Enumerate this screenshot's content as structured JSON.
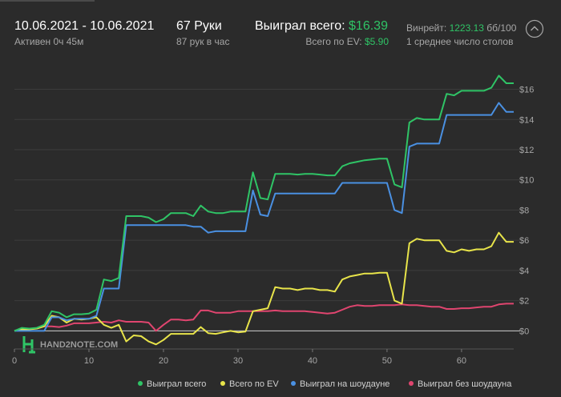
{
  "header": {
    "date_range": "10.06.2021 - 10.06.2021",
    "active_time": "Активен 0ч 45м",
    "hands": "67 Руки",
    "hands_per_hour": "87 рук в час",
    "won_total_label": "Выиграл всего:",
    "won_total_value": "$16.39",
    "ev_total_label": "Всего по EV:",
    "ev_total_value": "$5.90",
    "winrate_label": "Винрейт:",
    "winrate_value": "1223.13",
    "winrate_unit": "бб/100",
    "avg_tables": "1 среднее число столов"
  },
  "watermark": "HAND2NOTE.COM",
  "colors": {
    "won_total": "#2fc466",
    "ev": "#e8e44a",
    "showdown": "#4a90e2",
    "non_showdown": "#e0456f",
    "zero_line": "#cfcfcf",
    "grid": "#3c3c3c"
  },
  "chart_data": {
    "type": "line",
    "xlim": [
      0,
      67
    ],
    "ylim": [
      -1.2,
      17.3
    ],
    "x_ticks": [
      0,
      10,
      20,
      30,
      40,
      50,
      60
    ],
    "y_ticks": [
      0,
      2,
      4,
      6,
      8,
      10,
      12,
      14,
      16
    ],
    "y_tick_labels": [
      "$0",
      "$2",
      "$4",
      "$6",
      "$8",
      "$10",
      "$12",
      "$14",
      "$16"
    ],
    "grid": true,
    "legend_position": "bottom",
    "series": [
      {
        "name": "Выиграл всего",
        "key": "won_total",
        "points": [
          [
            0,
            0
          ],
          [
            1,
            0.2
          ],
          [
            2,
            0.15
          ],
          [
            3,
            0.2
          ],
          [
            4,
            0.4
          ],
          [
            5,
            1.3
          ],
          [
            6,
            1.2
          ],
          [
            7,
            0.9
          ],
          [
            8,
            1.1
          ],
          [
            9,
            1.1
          ],
          [
            10,
            1.15
          ],
          [
            11,
            1.4
          ],
          [
            12,
            3.4
          ],
          [
            13,
            3.3
          ],
          [
            14,
            3.5
          ],
          [
            15,
            7.6
          ],
          [
            16,
            7.6
          ],
          [
            17,
            7.6
          ],
          [
            18,
            7.5
          ],
          [
            19,
            7.2
          ],
          [
            20,
            7.4
          ],
          [
            21,
            7.8
          ],
          [
            22,
            7.8
          ],
          [
            23,
            7.8
          ],
          [
            24,
            7.6
          ],
          [
            25,
            8.3
          ],
          [
            26,
            7.9
          ],
          [
            27,
            7.8
          ],
          [
            28,
            7.8
          ],
          [
            29,
            7.9
          ],
          [
            30,
            7.9
          ],
          [
            31,
            7.9
          ],
          [
            32,
            10.5
          ],
          [
            33,
            8.8
          ],
          [
            34,
            8.7
          ],
          [
            35,
            10.4
          ],
          [
            36,
            10.4
          ],
          [
            37,
            10.4
          ],
          [
            38,
            10.35
          ],
          [
            39,
            10.4
          ],
          [
            40,
            10.4
          ],
          [
            41,
            10.35
          ],
          [
            42,
            10.3
          ],
          [
            43,
            10.3
          ],
          [
            44,
            10.9
          ],
          [
            45,
            11.1
          ],
          [
            46,
            11.2
          ],
          [
            47,
            11.3
          ],
          [
            48,
            11.35
          ],
          [
            49,
            11.4
          ],
          [
            50,
            11.4
          ],
          [
            51,
            9.7
          ],
          [
            52,
            9.5
          ],
          [
            53,
            13.8
          ],
          [
            54,
            14.1
          ],
          [
            55,
            14.0
          ],
          [
            56,
            14.0
          ],
          [
            57,
            14.0
          ],
          [
            58,
            15.7
          ],
          [
            59,
            15.6
          ],
          [
            60,
            15.9
          ],
          [
            61,
            15.9
          ],
          [
            62,
            15.9
          ],
          [
            63,
            15.9
          ],
          [
            64,
            16.1
          ],
          [
            65,
            16.9
          ],
          [
            66,
            16.4
          ],
          [
            67,
            16.4
          ]
        ]
      },
      {
        "name": "Всего по EV",
        "key": "ev",
        "points": [
          [
            0,
            0
          ],
          [
            1,
            0.1
          ],
          [
            2,
            0.1
          ],
          [
            3,
            0.15
          ],
          [
            4,
            0.3
          ],
          [
            5,
            1.0
          ],
          [
            6,
            0.9
          ],
          [
            7,
            0.55
          ],
          [
            8,
            0.8
          ],
          [
            9,
            0.75
          ],
          [
            10,
            0.8
          ],
          [
            11,
            0.9
          ],
          [
            12,
            0.4
          ],
          [
            13,
            0.2
          ],
          [
            14,
            0.4
          ],
          [
            15,
            -0.7
          ],
          [
            16,
            -0.3
          ],
          [
            17,
            -0.35
          ],
          [
            18,
            -0.7
          ],
          [
            19,
            -0.9
          ],
          [
            20,
            -0.6
          ],
          [
            21,
            -0.2
          ],
          [
            22,
            -0.2
          ],
          [
            23,
            -0.2
          ],
          [
            24,
            -0.2
          ],
          [
            25,
            0.25
          ],
          [
            26,
            -0.15
          ],
          [
            27,
            -0.2
          ],
          [
            28,
            -0.1
          ],
          [
            29,
            0.0
          ],
          [
            30,
            -0.1
          ],
          [
            31,
            -0.05
          ],
          [
            32,
            1.3
          ],
          [
            33,
            1.4
          ],
          [
            34,
            1.5
          ],
          [
            35,
            2.9
          ],
          [
            36,
            2.8
          ],
          [
            37,
            2.8
          ],
          [
            38,
            2.7
          ],
          [
            39,
            2.8
          ],
          [
            40,
            2.8
          ],
          [
            41,
            2.7
          ],
          [
            42,
            2.7
          ],
          [
            43,
            2.6
          ],
          [
            44,
            3.4
          ],
          [
            45,
            3.6
          ],
          [
            46,
            3.7
          ],
          [
            47,
            3.8
          ],
          [
            48,
            3.8
          ],
          [
            49,
            3.85
          ],
          [
            50,
            3.85
          ],
          [
            51,
            2.0
          ],
          [
            52,
            1.8
          ],
          [
            53,
            5.8
          ],
          [
            54,
            6.1
          ],
          [
            55,
            6.0
          ],
          [
            56,
            6.0
          ],
          [
            57,
            6.0
          ],
          [
            58,
            5.3
          ],
          [
            59,
            5.2
          ],
          [
            60,
            5.4
          ],
          [
            61,
            5.3
          ],
          [
            62,
            5.4
          ],
          [
            63,
            5.4
          ],
          [
            64,
            5.6
          ],
          [
            65,
            6.5
          ],
          [
            66,
            5.9
          ],
          [
            67,
            5.9
          ]
        ]
      },
      {
        "name": "Выиграл на шоудауне",
        "key": "showdown",
        "points": [
          [
            0,
            0
          ],
          [
            1,
            0
          ],
          [
            2,
            0
          ],
          [
            3,
            0
          ],
          [
            4,
            0
          ],
          [
            5,
            0.9
          ],
          [
            6,
            0.9
          ],
          [
            7,
            0.7
          ],
          [
            8,
            0.8
          ],
          [
            9,
            0.8
          ],
          [
            10,
            0.8
          ],
          [
            11,
            1.0
          ],
          [
            12,
            2.8
          ],
          [
            13,
            2.8
          ],
          [
            14,
            2.8
          ],
          [
            15,
            7.0
          ],
          [
            16,
            7.0
          ],
          [
            17,
            7.0
          ],
          [
            18,
            7.0
          ],
          [
            19,
            7.0
          ],
          [
            20,
            7.0
          ],
          [
            21,
            7.0
          ],
          [
            22,
            7.0
          ],
          [
            23,
            7.0
          ],
          [
            24,
            6.9
          ],
          [
            25,
            6.9
          ],
          [
            26,
            6.5
          ],
          [
            27,
            6.6
          ],
          [
            28,
            6.6
          ],
          [
            29,
            6.6
          ],
          [
            30,
            6.6
          ],
          [
            31,
            6.6
          ],
          [
            32,
            9.3
          ],
          [
            33,
            7.7
          ],
          [
            34,
            7.6
          ],
          [
            35,
            9.1
          ],
          [
            36,
            9.1
          ],
          [
            37,
            9.1
          ],
          [
            38,
            9.1
          ],
          [
            39,
            9.1
          ],
          [
            40,
            9.1
          ],
          [
            41,
            9.1
          ],
          [
            42,
            9.1
          ],
          [
            43,
            9.1
          ],
          [
            44,
            9.8
          ],
          [
            45,
            9.8
          ],
          [
            46,
            9.8
          ],
          [
            47,
            9.8
          ],
          [
            48,
            9.8
          ],
          [
            49,
            9.8
          ],
          [
            50,
            9.8
          ],
          [
            51,
            8.0
          ],
          [
            52,
            7.8
          ],
          [
            53,
            12.2
          ],
          [
            54,
            12.4
          ],
          [
            55,
            12.4
          ],
          [
            56,
            12.4
          ],
          [
            57,
            12.4
          ],
          [
            58,
            14.3
          ],
          [
            59,
            14.3
          ],
          [
            60,
            14.3
          ],
          [
            61,
            14.3
          ],
          [
            62,
            14.3
          ],
          [
            63,
            14.3
          ],
          [
            64,
            14.3
          ],
          [
            65,
            15.1
          ],
          [
            66,
            14.5
          ],
          [
            67,
            14.5
          ]
        ]
      },
      {
        "name": "Выиграл без шоудауна",
        "key": "non_showdown",
        "points": [
          [
            0,
            0
          ],
          [
            1,
            0.15
          ],
          [
            2,
            0.15
          ],
          [
            3,
            0.15
          ],
          [
            4,
            0.3
          ],
          [
            5,
            0.3
          ],
          [
            6,
            0.25
          ],
          [
            7,
            0.35
          ],
          [
            8,
            0.5
          ],
          [
            9,
            0.5
          ],
          [
            10,
            0.5
          ],
          [
            11,
            0.55
          ],
          [
            12,
            0.6
          ],
          [
            13,
            0.55
          ],
          [
            14,
            0.7
          ],
          [
            15,
            0.6
          ],
          [
            16,
            0.6
          ],
          [
            17,
            0.6
          ],
          [
            18,
            0.55
          ],
          [
            19,
            0.0
          ],
          [
            20,
            0.4
          ],
          [
            21,
            0.75
          ],
          [
            22,
            0.75
          ],
          [
            23,
            0.7
          ],
          [
            24,
            0.75
          ],
          [
            25,
            1.35
          ],
          [
            26,
            1.35
          ],
          [
            27,
            1.2
          ],
          [
            28,
            1.2
          ],
          [
            29,
            1.2
          ],
          [
            30,
            1.3
          ],
          [
            31,
            1.3
          ],
          [
            32,
            1.3
          ],
          [
            33,
            1.3
          ],
          [
            34,
            1.3
          ],
          [
            35,
            1.35
          ],
          [
            36,
            1.3
          ],
          [
            37,
            1.3
          ],
          [
            38,
            1.3
          ],
          [
            39,
            1.3
          ],
          [
            40,
            1.25
          ],
          [
            41,
            1.2
          ],
          [
            42,
            1.15
          ],
          [
            43,
            1.2
          ],
          [
            44,
            1.4
          ],
          [
            45,
            1.6
          ],
          [
            46,
            1.7
          ],
          [
            47,
            1.65
          ],
          [
            48,
            1.65
          ],
          [
            49,
            1.7
          ],
          [
            50,
            1.7
          ],
          [
            51,
            1.7
          ],
          [
            52,
            1.75
          ],
          [
            53,
            1.7
          ],
          [
            54,
            1.7
          ],
          [
            55,
            1.65
          ],
          [
            56,
            1.6
          ],
          [
            57,
            1.6
          ],
          [
            58,
            1.45
          ],
          [
            59,
            1.45
          ],
          [
            60,
            1.5
          ],
          [
            61,
            1.5
          ],
          [
            62,
            1.55
          ],
          [
            63,
            1.6
          ],
          [
            64,
            1.6
          ],
          [
            65,
            1.75
          ],
          [
            66,
            1.8
          ],
          [
            67,
            1.8
          ]
        ]
      }
    ]
  }
}
